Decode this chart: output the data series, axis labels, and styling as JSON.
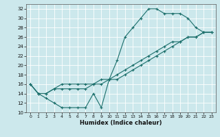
{
  "xlabel": "Humidex (Indice chaleur)",
  "background_color": "#cce8ec",
  "line_color": "#1a6e6a",
  "xlim": [
    -0.5,
    23.5
  ],
  "ylim": [
    10,
    33
  ],
  "xticks": [
    0,
    1,
    2,
    3,
    4,
    5,
    6,
    7,
    8,
    9,
    10,
    11,
    12,
    13,
    14,
    15,
    16,
    17,
    18,
    19,
    20,
    21,
    22,
    23
  ],
  "yticks": [
    10,
    12,
    14,
    16,
    18,
    20,
    22,
    24,
    26,
    28,
    30,
    32
  ],
  "line1_x": [
    0,
    1,
    2,
    3,
    4,
    5,
    6,
    7,
    8,
    9,
    10,
    11,
    12,
    13,
    14,
    15,
    16,
    17,
    18,
    19,
    20,
    21,
    22,
    23
  ],
  "line1_y": [
    16,
    14,
    13,
    12,
    11,
    11,
    11,
    11,
    14,
    11,
    17,
    21,
    26,
    28,
    30,
    32,
    32,
    31,
    31,
    31,
    30,
    28,
    27,
    27
  ],
  "line2_x": [
    0,
    1,
    2,
    3,
    4,
    5,
    6,
    7,
    8,
    9,
    10,
    11,
    12,
    13,
    14,
    15,
    16,
    17,
    18,
    19,
    20,
    21,
    22,
    23
  ],
  "line2_y": [
    16,
    14,
    14,
    15,
    15,
    15,
    15,
    15,
    16,
    16,
    17,
    17,
    18,
    19,
    20,
    21,
    22,
    23,
    24,
    25,
    26,
    26,
    27,
    27
  ],
  "line3_x": [
    0,
    1,
    2,
    3,
    4,
    5,
    6,
    7,
    8,
    9,
    10,
    11,
    12,
    13,
    14,
    15,
    16,
    17,
    18,
    19,
    20,
    21,
    22,
    23
  ],
  "line3_y": [
    16,
    14,
    14,
    15,
    16,
    16,
    16,
    16,
    16,
    17,
    17,
    18,
    19,
    20,
    21,
    22,
    23,
    24,
    25,
    25,
    26,
    26,
    27,
    27
  ]
}
